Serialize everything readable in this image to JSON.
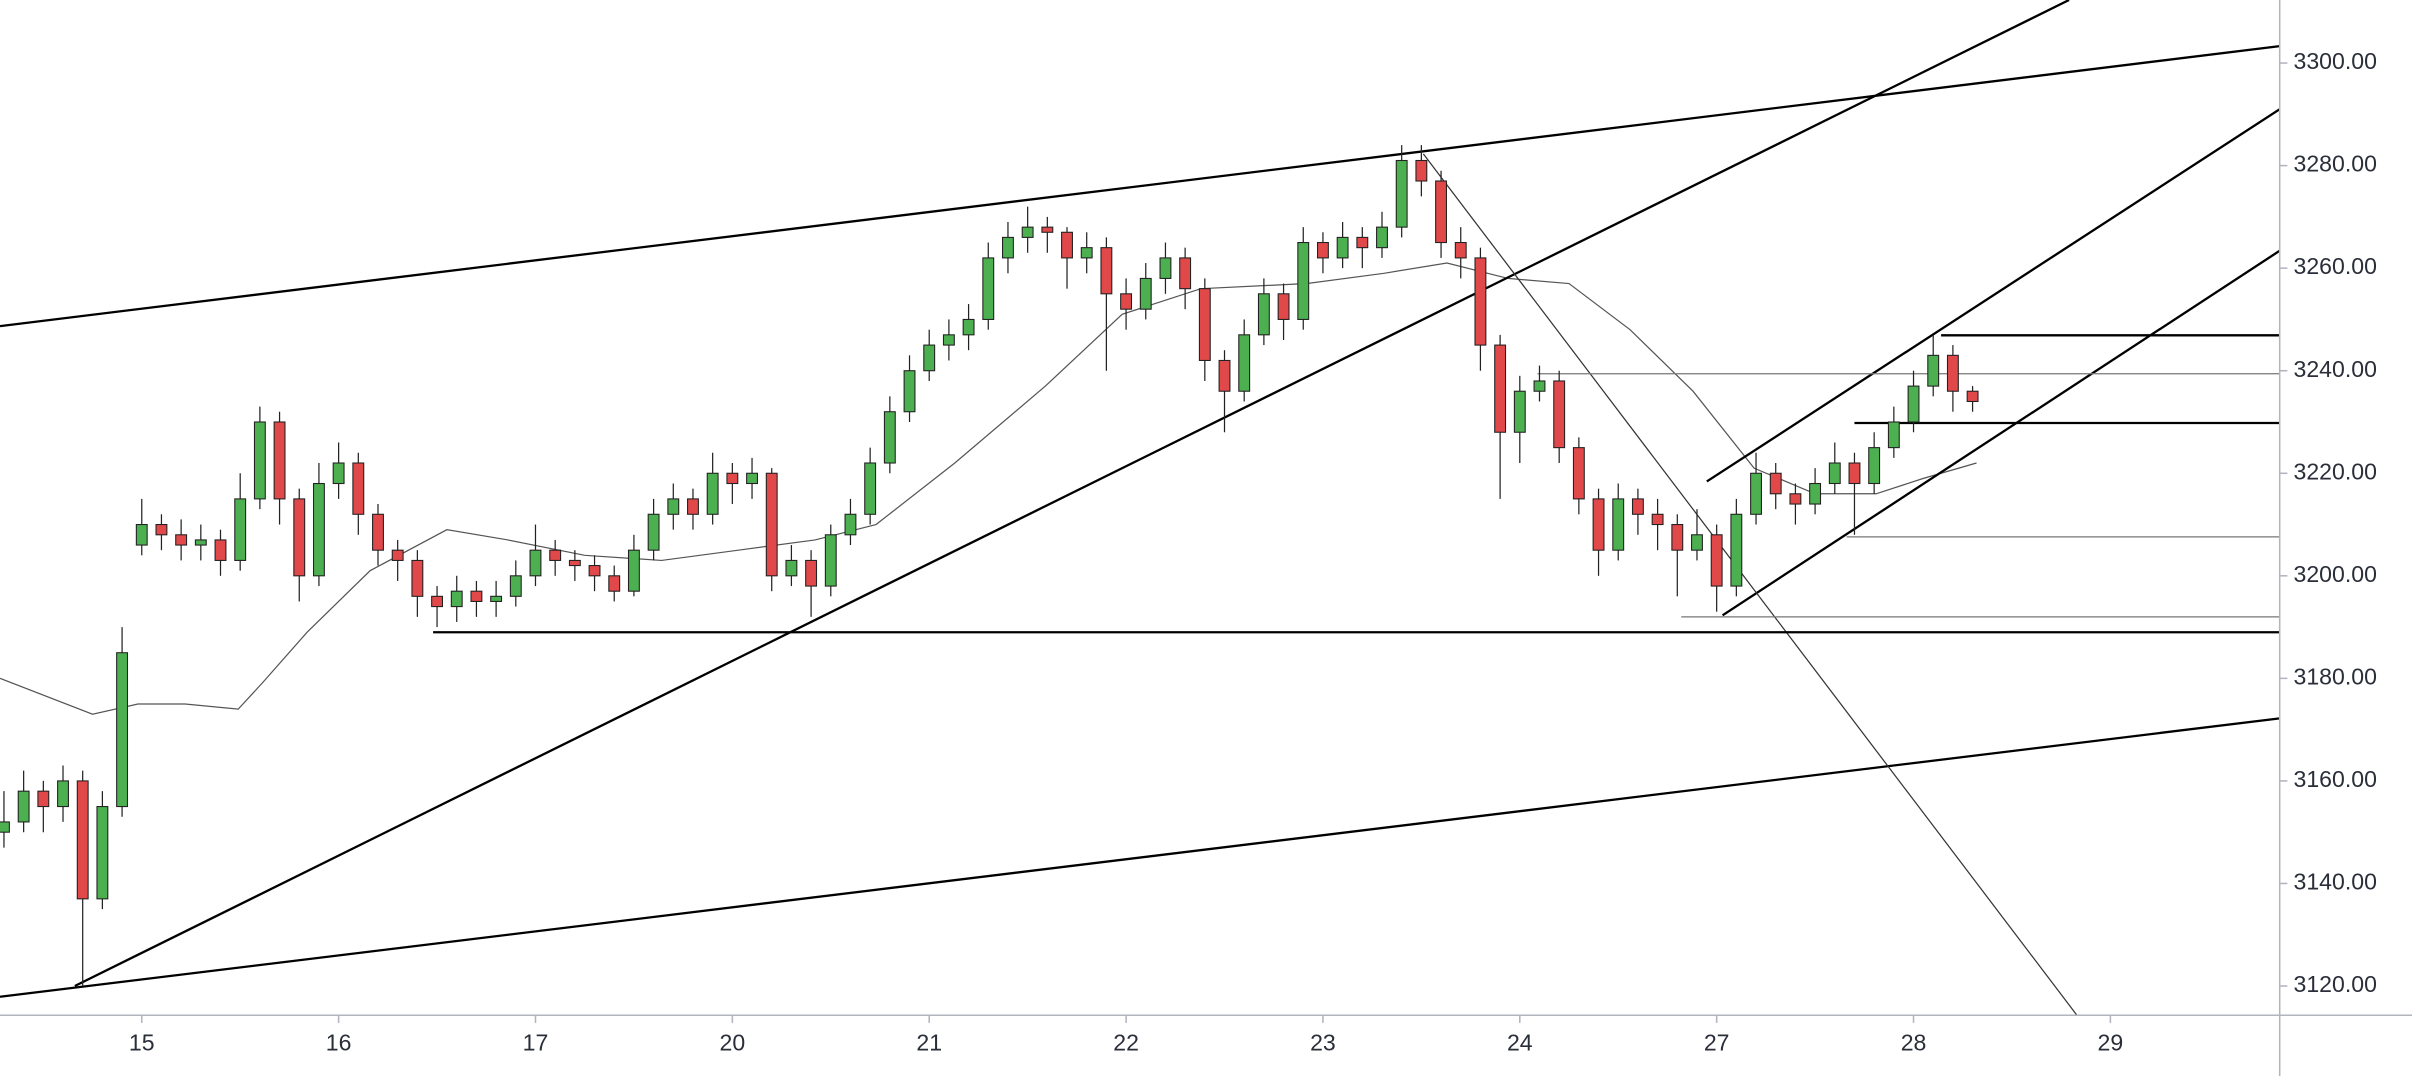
{
  "chart_data": {
    "type": "candlestick",
    "xlim": [
      -0.72,
      10.86
    ],
    "xticks": [
      {
        "value": 0,
        "label": "15"
      },
      {
        "value": 1,
        "label": "16"
      },
      {
        "value": 2,
        "label": "17"
      },
      {
        "value": 3,
        "label": "20"
      },
      {
        "value": 4,
        "label": "21"
      },
      {
        "value": 5,
        "label": "22"
      },
      {
        "value": 6,
        "label": "23"
      },
      {
        "value": 7,
        "label": "24"
      },
      {
        "value": 8,
        "label": "27"
      },
      {
        "value": 9,
        "label": "28"
      },
      {
        "value": 10,
        "label": "29"
      }
    ],
    "ylim": [
      3114.3,
      3312.3
    ],
    "yticks": [
      {
        "value": 3120,
        "label": "3120.00"
      },
      {
        "value": 3140,
        "label": "3140.00"
      },
      {
        "value": 3160,
        "label": "3160.00"
      },
      {
        "value": 3180,
        "label": "3180.00"
      },
      {
        "value": 3200,
        "label": "3200.00"
      },
      {
        "value": 3220,
        "label": "3220.00"
      },
      {
        "value": 3240,
        "label": "3240.00"
      },
      {
        "value": 3260,
        "label": "3260.00"
      },
      {
        "value": 3280,
        "label": "3280.00"
      },
      {
        "value": 3300,
        "label": "3300.00"
      }
    ],
    "up_color": "#4caf50",
    "down_color": "#e0484a",
    "x": [
      -0.7,
      -0.6,
      -0.5,
      -0.4,
      -0.3,
      -0.2,
      -0.1,
      0.0,
      0.1,
      0.2,
      0.3,
      0.4,
      0.5,
      0.6,
      0.7,
      0.8,
      0.9,
      1.0,
      1.1,
      1.2,
      1.3,
      1.4,
      1.5,
      1.6,
      1.7,
      1.8,
      1.9,
      2.0,
      2.1,
      2.2,
      2.3,
      2.4,
      2.5,
      2.6,
      2.7,
      2.8,
      2.9,
      3.0,
      3.1,
      3.2,
      3.3,
      3.4,
      3.5,
      3.6,
      3.7,
      3.8,
      3.9,
      4.0,
      4.1,
      4.2,
      4.3,
      4.4,
      4.5,
      4.6,
      4.7,
      4.8,
      4.9,
      5.0,
      5.1,
      5.2,
      5.3,
      5.4,
      5.5,
      5.6,
      5.7,
      5.8,
      5.9,
      6.0,
      6.1,
      6.2,
      6.3,
      6.4,
      6.5,
      6.6,
      6.7,
      6.8,
      6.9,
      7.0,
      7.1,
      7.2,
      7.3,
      7.4,
      7.5,
      7.6,
      7.7,
      7.8,
      7.9,
      8.0,
      8.1,
      8.2,
      8.3,
      8.4,
      8.5,
      8.6,
      8.7,
      8.8,
      8.9,
      9.0,
      9.1,
      9.2,
      9.3
    ],
    "ohlc": [
      [
        3150,
        3158,
        3147,
        3152
      ],
      [
        3152,
        3162,
        3150,
        3158
      ],
      [
        3158,
        3160,
        3150,
        3155
      ],
      [
        3155,
        3163,
        3152,
        3160
      ],
      [
        3160,
        3162,
        3120,
        3137
      ],
      [
        3137,
        3158,
        3135,
        3155
      ],
      [
        3155,
        3190,
        3153,
        3185
      ],
      [
        3206,
        3215,
        3204,
        3210
      ],
      [
        3210,
        3212,
        3205,
        3208
      ],
      [
        3208,
        3211,
        3203,
        3206
      ],
      [
        3206,
        3210,
        3203,
        3207
      ],
      [
        3207,
        3209,
        3200,
        3203
      ],
      [
        3203,
        3220,
        3201,
        3215
      ],
      [
        3215,
        3233,
        3213,
        3230
      ],
      [
        3230,
        3232,
        3210,
        3215
      ],
      [
        3215,
        3217,
        3195,
        3200
      ],
      [
        3200,
        3222,
        3198,
        3218
      ],
      [
        3218,
        3226,
        3215,
        3222
      ],
      [
        3222,
        3224,
        3208,
        3212
      ],
      [
        3212,
        3214,
        3202,
        3205
      ],
      [
        3205,
        3207,
        3199,
        3203
      ],
      [
        3203,
        3205,
        3192,
        3196
      ],
      [
        3196,
        3198,
        3190,
        3194
      ],
      [
        3194,
        3200,
        3191,
        3197
      ],
      [
        3197,
        3199,
        3192,
        3195
      ],
      [
        3195,
        3199,
        3192,
        3196
      ],
      [
        3196,
        3203,
        3194,
        3200
      ],
      [
        3200,
        3210,
        3198,
        3205
      ],
      [
        3205,
        3207,
        3200,
        3203
      ],
      [
        3203,
        3205,
        3199,
        3202
      ],
      [
        3202,
        3204,
        3197,
        3200
      ],
      [
        3200,
        3202,
        3195,
        3197
      ],
      [
        3197,
        3208,
        3196,
        3205
      ],
      [
        3205,
        3215,
        3203,
        3212
      ],
      [
        3212,
        3218,
        3209,
        3215
      ],
      [
        3215,
        3217,
        3209,
        3212
      ],
      [
        3212,
        3224,
        3210,
        3220
      ],
      [
        3220,
        3222,
        3214,
        3218
      ],
      [
        3218,
        3223,
        3215,
        3220
      ],
      [
        3220,
        3221,
        3197,
        3200
      ],
      [
        3200,
        3206,
        3198,
        3203
      ],
      [
        3203,
        3205,
        3192,
        3198
      ],
      [
        3198,
        3210,
        3196,
        3208
      ],
      [
        3208,
        3215,
        3206,
        3212
      ],
      [
        3212,
        3225,
        3210,
        3222
      ],
      [
        3222,
        3235,
        3220,
        3232
      ],
      [
        3232,
        3243,
        3230,
        3240
      ],
      [
        3240,
        3248,
        3238,
        3245
      ],
      [
        3245,
        3250,
        3242,
        3247
      ],
      [
        3247,
        3253,
        3244,
        3250
      ],
      [
        3250,
        3265,
        3248,
        3262
      ],
      [
        3262,
        3269,
        3259,
        3266
      ],
      [
        3266,
        3272,
        3263,
        3268
      ],
      [
        3268,
        3270,
        3263,
        3267
      ],
      [
        3267,
        3268,
        3256,
        3262
      ],
      [
        3262,
        3267,
        3259,
        3264
      ],
      [
        3264,
        3266,
        3240,
        3255
      ],
      [
        3255,
        3258,
        3248,
        3252
      ],
      [
        3252,
        3261,
        3250,
        3258
      ],
      [
        3258,
        3265,
        3255,
        3262
      ],
      [
        3262,
        3264,
        3252,
        3256
      ],
      [
        3256,
        3258,
        3238,
        3242
      ],
      [
        3242,
        3244,
        3228,
        3236
      ],
      [
        3236,
        3250,
        3234,
        3247
      ],
      [
        3247,
        3258,
        3245,
        3255
      ],
      [
        3255,
        3257,
        3246,
        3250
      ],
      [
        3250,
        3268,
        3248,
        3265
      ],
      [
        3265,
        3267,
        3259,
        3262
      ],
      [
        3262,
        3269,
        3260,
        3266
      ],
      [
        3266,
        3268,
        3260,
        3264
      ],
      [
        3264,
        3271,
        3262,
        3268
      ],
      [
        3268,
        3284,
        3266,
        3281
      ],
      [
        3281,
        3284,
        3274,
        3277
      ],
      [
        3277,
        3279,
        3262,
        3265
      ],
      [
        3265,
        3268,
        3258,
        3262
      ],
      [
        3262,
        3264,
        3240,
        3245
      ],
      [
        3245,
        3247,
        3215,
        3228
      ],
      [
        3228,
        3239,
        3222,
        3236
      ],
      [
        3236,
        3241,
        3234,
        3238
      ],
      [
        3238,
        3240,
        3222,
        3225
      ],
      [
        3225,
        3227,
        3212,
        3215
      ],
      [
        3215,
        3217,
        3200,
        3205
      ],
      [
        3205,
        3218,
        3203,
        3215
      ],
      [
        3215,
        3217,
        3208,
        3212
      ],
      [
        3212,
        3215,
        3205,
        3210
      ],
      [
        3210,
        3212,
        3196,
        3205
      ],
      [
        3205,
        3213,
        3203,
        3208
      ],
      [
        3208,
        3210,
        3193,
        3198
      ],
      [
        3198,
        3215,
        3196,
        3212
      ],
      [
        3212,
        3224,
        3210,
        3220
      ],
      [
        3220,
        3222,
        3213,
        3216
      ],
      [
        3216,
        3218,
        3210,
        3214
      ],
      [
        3214,
        3221,
        3212,
        3218
      ],
      [
        3218,
        3226,
        3216,
        3222
      ],
      [
        3222,
        3224,
        3208,
        3218
      ],
      [
        3218,
        3228,
        3216,
        3225
      ],
      [
        3225,
        3233,
        3223,
        3230
      ],
      [
        3230,
        3240,
        3228,
        3237
      ],
      [
        3237,
        3247,
        3235,
        3243
      ],
      [
        3243,
        3245,
        3232,
        3236
      ],
      [
        3236,
        3237,
        3232,
        3234
      ]
    ],
    "moving_average": {
      "color": "#555555",
      "x": [
        -0.72,
        -0.25,
        -0.02,
        0.22,
        0.49,
        0.61,
        0.84,
        1.16,
        1.55,
        1.86,
        2.25,
        2.64,
        3.03,
        3.42,
        3.73,
        4.13,
        4.59,
        4.98,
        5.38,
        5.92,
        6.31,
        6.63,
        6.94,
        7.25,
        7.56,
        7.88,
        8.19,
        8.5,
        8.81,
        9.05,
        9.32
      ],
      "values": [
        3180,
        3173,
        3175,
        3175,
        3174,
        3179,
        3189,
        3201,
        3209,
        3207,
        3204,
        3203,
        3205,
        3207,
        3210,
        3222,
        3237,
        3251,
        3256,
        3257,
        3259,
        3261,
        3258,
        3257,
        3248,
        3236,
        3221,
        3216,
        3216,
        3219,
        3222
      ]
    },
    "trendlines": [
      {
        "color": "#000000",
        "width": 1.5,
        "x": [
          -0.72,
          10.86
        ],
        "y": [
          3248.7,
          3303.3
        ]
      },
      {
        "color": "#000000",
        "width": 1.5,
        "x": [
          -0.72,
          10.86
        ],
        "y": [
          3117.9,
          3172.2
        ]
      },
      {
        "color": "#000000",
        "width": 1.5,
        "x": [
          -0.34,
          9.79
        ],
        "y": [
          3120,
          3312.3
        ]
      },
      {
        "color": "#000000",
        "width": 1.5,
        "x": [
          7.95,
          10.86
        ],
        "y": [
          3218.4,
          3291
        ]
      },
      {
        "color": "#000000",
        "width": 1.5,
        "x": [
          8.03,
          10.86
        ],
        "y": [
          3192.3,
          3263.4
        ]
      },
      {
        "color": "#333333",
        "width": 0.8,
        "x": [
          6.51,
          9.83
        ],
        "y": [
          3282.3,
          3114.3
        ]
      },
      {
        "color": "#000000",
        "width": 1.5,
        "x": [
          1.48,
          10.86
        ],
        "y": [
          3189,
          3189
        ]
      },
      {
        "color": "#000000",
        "width": 1.5,
        "x": [
          9.14,
          10.86
        ],
        "y": [
          3246.9,
          3246.9
        ]
      },
      {
        "color": "#000000",
        "width": 1.5,
        "x": [
          8.7,
          10.86
        ],
        "y": [
          3229.8,
          3229.8
        ]
      },
      {
        "color": "#777777",
        "width": 0.8,
        "x": [
          7.09,
          10.86
        ],
        "y": [
          3239.4,
          3239.4
        ]
      },
      {
        "color": "#777777",
        "width": 0.8,
        "x": [
          8.66,
          10.86
        ],
        "y": [
          3207.6,
          3207.6
        ]
      },
      {
        "color": "#777777",
        "width": 0.8,
        "x": [
          7.82,
          10.86
        ],
        "y": [
          3192,
          3192
        ]
      }
    ]
  }
}
